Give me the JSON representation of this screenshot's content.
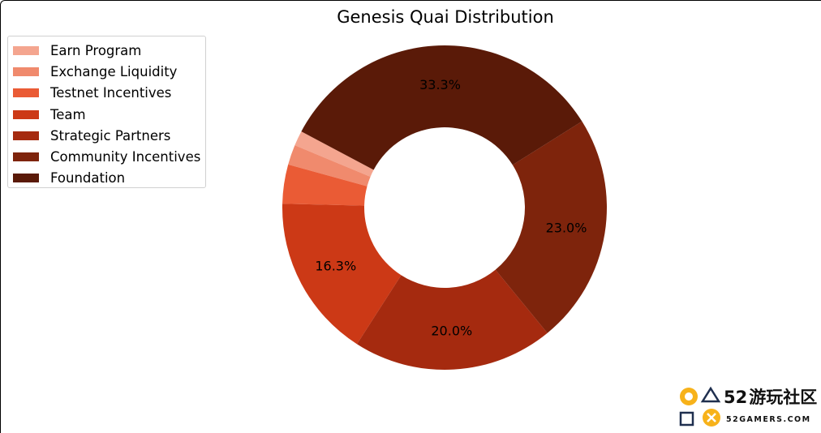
{
  "chart_data": {
    "type": "pie",
    "donut": true,
    "title": "Genesis Quai Distribution",
    "legend_position": "top-left",
    "categories": [
      "Earn Program",
      "Exchange Liquidity",
      "Testnet Incentives",
      "Team",
      "Strategic Partners",
      "Community Incentives",
      "Foundation"
    ],
    "values": [
      1.5,
      2.0,
      3.9,
      16.3,
      20.0,
      23.0,
      33.3
    ],
    "value_labels": [
      "",
      "",
      "",
      "16.3%",
      "20.0%",
      "23.0%",
      "33.3%"
    ],
    "colors": [
      "#f4a58f",
      "#f08a6d",
      "#ea5b35",
      "#cc3916",
      "#a52a0f",
      "#7e240c",
      "#5a1a08"
    ]
  },
  "watermark": {
    "text_number": "52",
    "text_cn": "游玩社区",
    "text_domain": "52GAMERS.COM"
  }
}
